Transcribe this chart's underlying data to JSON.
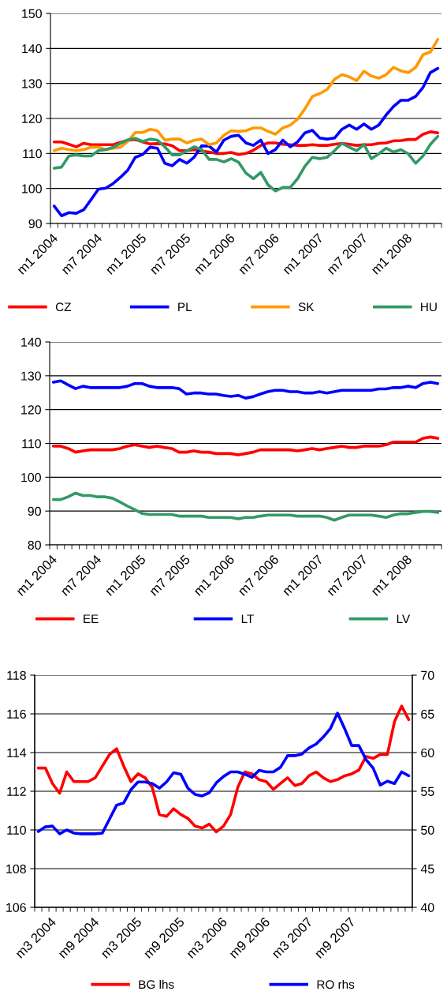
{
  "chart_data": [
    {
      "type": "line",
      "categories": [
        "m1 2004",
        null,
        null,
        null,
        null,
        null,
        "m7 2004",
        null,
        null,
        null,
        null,
        null,
        "m1 2005",
        null,
        null,
        null,
        null,
        null,
        "m7 2005",
        null,
        null,
        null,
        null,
        null,
        "m1 2006",
        null,
        null,
        null,
        null,
        null,
        "m7 2006",
        null,
        null,
        null,
        null,
        null,
        "m1 2007",
        null,
        null,
        null,
        null,
        null,
        "m7 2007",
        null,
        null,
        null,
        null,
        null,
        "m1 2008",
        null,
        null,
        null,
        null
      ],
      "ylim": [
        90,
        150
      ],
      "yticks": [
        90,
        100,
        110,
        120,
        130,
        140,
        150
      ],
      "grid": "y",
      "legend": "bottom",
      "marker": "none",
      "line_style": "solid",
      "series": [
        {
          "name": "CZ",
          "color": "#ff0000",
          "values": [
            113.3,
            113.3,
            112.6,
            111.9,
            112.9,
            112.5,
            112.5,
            112.5,
            112.5,
            113.2,
            113.8,
            114,
            113.3,
            112.7,
            112.8,
            112.7,
            112.2,
            110.8,
            110.8,
            111.1,
            110.7,
            110.4,
            110,
            110,
            110.3,
            109.7,
            110,
            110.9,
            112.3,
            113,
            113,
            112.6,
            112.5,
            112.3,
            112.3,
            112.5,
            112.3,
            112.3,
            112.6,
            112.9,
            112.6,
            112.3,
            112.5,
            112.5,
            112.9,
            113,
            113.6,
            113.7,
            114,
            114,
            115.5,
            116.2,
            115.9
          ]
        },
        {
          "name": "PL",
          "color": "#0000ff",
          "values": [
            95,
            92.2,
            93.1,
            92.9,
            93.9,
            96.8,
            99.8,
            100.1,
            101.4,
            103.2,
            105.3,
            108.9,
            109.7,
            111.8,
            111.5,
            107.2,
            106.5,
            108.3,
            107.2,
            109,
            112.2,
            112.1,
            110.4,
            113.8,
            114.9,
            115.2,
            113,
            112.3,
            113.8,
            110,
            111.1,
            113.8,
            111.9,
            113.3,
            115.9,
            116.6,
            114.4,
            114.1,
            114.4,
            116.9,
            118.1,
            116.9,
            118.4,
            116.9,
            118.1,
            121,
            123.4,
            125.2,
            125.2,
            126.3,
            128.9,
            133.1,
            134.3
          ]
        },
        {
          "name": "SK",
          "color": "#ff9900",
          "values": [
            110.8,
            111.5,
            111.1,
            110.8,
            111.1,
            111.8,
            111.8,
            111.1,
            111.5,
            111.8,
            113.5,
            116,
            116,
            116.9,
            116.5,
            113.8,
            114.1,
            114.1,
            113,
            113.8,
            114.1,
            112.5,
            113,
            115.2,
            116.5,
            116.3,
            116.5,
            117.3,
            117.3,
            116.3,
            115.5,
            117.3,
            118.1,
            119.8,
            122.8,
            126.3,
            127.1,
            128.3,
            131.2,
            132.5,
            131.9,
            130.8,
            133.5,
            132.1,
            131.5,
            132.5,
            134.6,
            133.6,
            133.1,
            134.6,
            138.2,
            139,
            142.6
          ]
        },
        {
          "name": "HU",
          "color": "#339966",
          "values": [
            105.8,
            106.1,
            109.3,
            109.6,
            109.3,
            109.3,
            110.8,
            111.1,
            111.8,
            112.9,
            113.9,
            114.3,
            113.4,
            114.1,
            113.8,
            111.9,
            109.6,
            109.6,
            110.8,
            111.9,
            111.1,
            108.3,
            108.3,
            107.6,
            108.5,
            107.5,
            104.4,
            102.8,
            104.6,
            101,
            99.3,
            100.3,
            100.3,
            102.8,
            106.4,
            108.9,
            108.5,
            108.9,
            110.8,
            112.9,
            111.8,
            110.8,
            112.6,
            108.5,
            109.9,
            111.5,
            110.4,
            111.1,
            109.9,
            107.2,
            109.3,
            112.6,
            114.9
          ]
        }
      ]
    },
    {
      "type": "line",
      "categories": [
        "m1 2004",
        null,
        null,
        null,
        null,
        null,
        "m7 2004",
        null,
        null,
        null,
        null,
        null,
        "m1 2005",
        null,
        null,
        null,
        null,
        null,
        "m7 2005",
        null,
        null,
        null,
        null,
        null,
        "m1 2006",
        null,
        null,
        null,
        null,
        null,
        "m7 2006",
        null,
        null,
        null,
        null,
        null,
        "m1 2007",
        null,
        null,
        null,
        null,
        null,
        "m7 2007",
        null,
        null,
        null,
        null,
        null,
        "m1 2008",
        null,
        null,
        null,
        null
      ],
      "ylim": [
        80,
        140
      ],
      "yticks": [
        80,
        90,
        100,
        110,
        120,
        130,
        140
      ],
      "grid": "y",
      "legend": "bottom",
      "marker": "none",
      "line_style": "solid",
      "series": [
        {
          "name": "EE",
          "color": "#ff0000",
          "values": [
            109.2,
            109.2,
            108.5,
            107.4,
            107.8,
            108.1,
            108.1,
            108.1,
            108.1,
            108.5,
            109.2,
            109.6,
            109.2,
            108.8,
            109.2,
            108.8,
            108.5,
            107.4,
            107.4,
            107.8,
            107.4,
            107.4,
            107,
            107,
            107,
            106.6,
            107,
            107.4,
            108.1,
            108.1,
            108.1,
            108.1,
            108.1,
            107.8,
            108.1,
            108.5,
            108.1,
            108.5,
            108.8,
            109.2,
            108.8,
            108.8,
            109.2,
            109.2,
            109.2,
            109.6,
            110.4,
            110.4,
            110.4,
            110.4,
            111.5,
            111.9,
            111.5
          ]
        },
        {
          "name": "LT",
          "color": "#0000ff",
          "values": [
            128.1,
            128.5,
            127.3,
            126.2,
            126.9,
            126.5,
            126.5,
            126.5,
            126.5,
            126.5,
            126.9,
            127.7,
            127.7,
            126.9,
            126.5,
            126.5,
            126.5,
            126.2,
            124.6,
            124.9,
            124.9,
            124.6,
            124.6,
            124.2,
            123.9,
            124.2,
            123.4,
            123.8,
            124.6,
            125.3,
            125.7,
            125.7,
            125.3,
            125.3,
            124.9,
            124.9,
            125.3,
            124.9,
            125.3,
            125.7,
            125.7,
            125.7,
            125.7,
            125.7,
            126.1,
            126.1,
            126.5,
            126.5,
            126.9,
            126.5,
            127.7,
            128.1,
            127.7
          ]
        },
        {
          "name": "LV",
          "color": "#339966",
          "values": [
            93.4,
            93.4,
            94.2,
            95.3,
            94.6,
            94.6,
            94.2,
            94.2,
            93.8,
            92.7,
            91.5,
            90.4,
            89.3,
            89,
            89,
            89,
            89,
            88.5,
            88.5,
            88.5,
            88.5,
            88.1,
            88.1,
            88.1,
            88.1,
            87.7,
            88.1,
            88.1,
            88.5,
            88.8,
            88.8,
            88.8,
            88.8,
            88.5,
            88.5,
            88.5,
            88.5,
            88.1,
            87.3,
            88.1,
            88.8,
            88.8,
            88.8,
            88.8,
            88.5,
            88.1,
            88.8,
            89.2,
            89.2,
            89.6,
            89.9,
            89.9,
            89.6
          ]
        }
      ]
    },
    {
      "type": "line",
      "categories": [
        null,
        null,
        "m3 2004",
        null,
        null,
        null,
        null,
        null,
        "m9 2004",
        null,
        null,
        null,
        null,
        null,
        "m3 2005",
        null,
        null,
        null,
        null,
        null,
        "m9 2005",
        null,
        null,
        null,
        null,
        null,
        "m3 2006",
        null,
        null,
        null,
        null,
        null,
        "m9 2006",
        null,
        null,
        null,
        null,
        null,
        "m3 2007",
        null,
        null,
        null,
        null,
        null,
        "m9 2007",
        null,
        null,
        null,
        null,
        null,
        null,
        null,
        null
      ],
      "ylim": [
        106,
        118
      ],
      "yticks": [
        106,
        108,
        110,
        112,
        114,
        116,
        118
      ],
      "y2lim": [
        40,
        70
      ],
      "y2ticks": [
        40,
        45,
        50,
        55,
        60,
        65,
        70
      ],
      "grid": "y",
      "legend": "bottom",
      "marker": "none",
      "line_style": "solid",
      "series": [
        {
          "name": "BG lhs",
          "color": "#ff0000",
          "values": [
            113.2,
            113.2,
            112.4,
            111.9,
            113,
            112.5,
            112.5,
            112.5,
            112.7,
            113.3,
            113.9,
            114.2,
            113.3,
            112.5,
            112.9,
            112.7,
            112.2,
            110.8,
            110.7,
            111.1,
            110.8,
            110.6,
            110.2,
            110.1,
            110.3,
            109.9,
            110.2,
            110.8,
            112.2,
            113,
            112.9,
            112.6,
            112.5,
            112.1,
            112.4,
            112.7,
            112.3,
            112.4,
            112.8,
            113,
            112.7,
            112.5,
            112.6,
            112.8,
            112.9,
            113.1,
            113.8,
            113.7,
            113.9,
            113.9,
            115.6,
            116.4,
            115.7
          ]
        },
        {
          "name": "RO rhs",
          "color": "#0000ff",
          "axis": "y2",
          "values": [
            49.8,
            50.4,
            50.5,
            49.5,
            50,
            49.6,
            49.5,
            49.5,
            49.5,
            49.6,
            51.4,
            53.2,
            53.5,
            55.2,
            56.2,
            56.2,
            56,
            55.4,
            56.2,
            57.4,
            57.2,
            55.4,
            54.6,
            54.4,
            54.8,
            56.1,
            56.9,
            57.5,
            57.5,
            57.2,
            56.8,
            57.7,
            57.5,
            57.5,
            58.1,
            59.6,
            59.6,
            59.8,
            60.6,
            61.1,
            62,
            63.1,
            65.1,
            63.1,
            60.9,
            60.9,
            59.1,
            58,
            55.8,
            56.3,
            56,
            57.5,
            57
          ]
        }
      ]
    }
  ]
}
